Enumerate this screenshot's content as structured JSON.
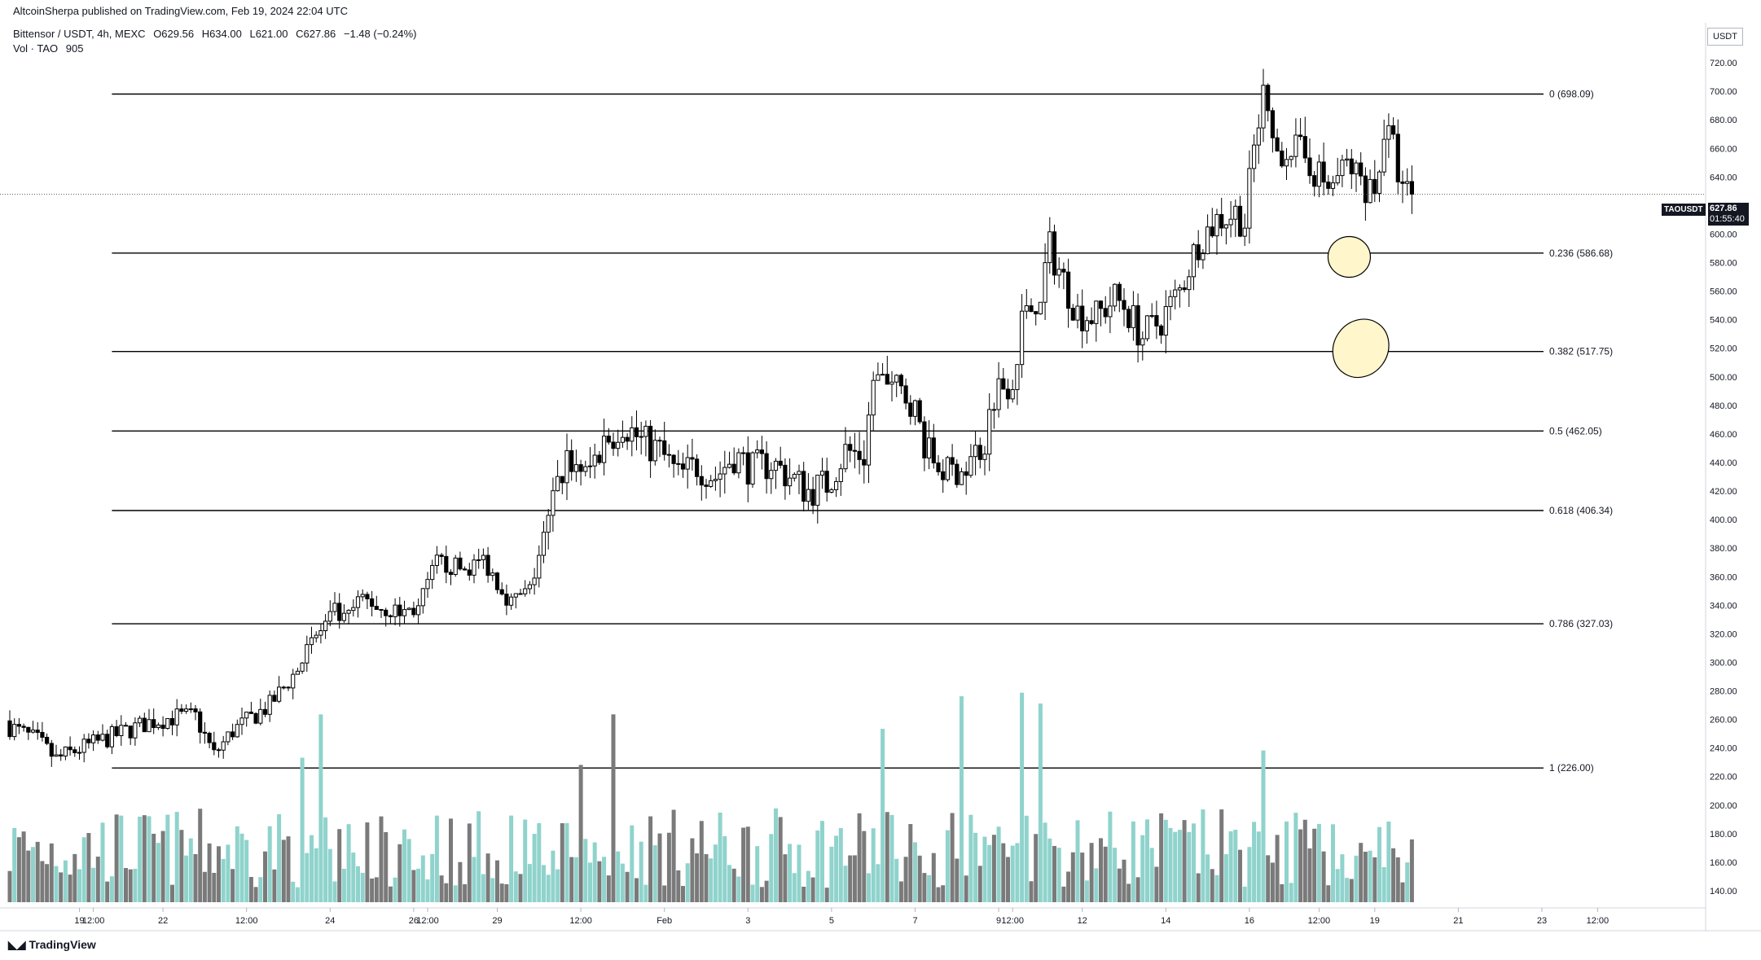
{
  "header": {
    "published": "AltcoinSherpa published on TradingView.com, Feb 19, 2024 22:04 UTC",
    "symbol": "Bittensor / USDT, 4h, MEXC",
    "ohlc": {
      "open": "O629.56",
      "high": "H634.00",
      "low": "L621.00",
      "close": "C627.86",
      "change": "−1.48 (−0.24%)"
    },
    "volume_label": "Vol · TAO",
    "volume_value": "905"
  },
  "price_axis": {
    "currency": "USDT",
    "symbol_tag": "TAOUSDT",
    "last_price": "627.86",
    "countdown": "01:55:40",
    "colors": {
      "up": "#ffffff",
      "down": "#000000",
      "vol_up": "#8fd3cc",
      "vol_down": "#7a7a7a",
      "line": "#000000"
    }
  },
  "branding": {
    "logo": "TradingView"
  },
  "chart_data": {
    "type": "candlestick",
    "title": "",
    "ylim": [
      128,
      748
    ],
    "y_ticks": [
      140,
      160,
      180,
      200,
      220,
      240,
      260,
      280,
      300,
      320,
      340,
      360,
      380,
      400,
      420,
      440,
      460,
      480,
      500,
      520,
      540,
      560,
      580,
      600,
      620,
      640,
      660,
      680,
      700,
      720,
      740
    ],
    "x_ticks": [
      {
        "label": "19",
        "bar": 15
      },
      {
        "label": "12:00",
        "bar": 18
      },
      {
        "label": "22",
        "bar": 33
      },
      {
        "label": "12:00",
        "bar": 51
      },
      {
        "label": "24",
        "bar": 69
      },
      {
        "label": "26",
        "bar": 87
      },
      {
        "label": "12:00",
        "bar": 90
      },
      {
        "label": "29",
        "bar": 105
      },
      {
        "label": "12:00",
        "bar": 123
      },
      {
        "label": "Feb",
        "bar": 141
      },
      {
        "label": "3",
        "bar": 159
      },
      {
        "label": "5",
        "bar": 177
      },
      {
        "label": "7",
        "bar": 195
      },
      {
        "label": "9",
        "bar": 213
      },
      {
        "label": "12:00",
        "bar": 216
      },
      {
        "label": "12",
        "bar": 231
      },
      {
        "label": "14",
        "bar": 249
      },
      {
        "label": "16",
        "bar": 267
      },
      {
        "label": "12:00",
        "bar": 282
      },
      {
        "label": "19",
        "bar": 294
      },
      {
        "label": "21",
        "bar": 312
      },
      {
        "label": "23",
        "bar": 330
      },
      {
        "label": "12:00",
        "bar": 342
      }
    ],
    "fib_levels": [
      {
        "label": "0 (698.09)",
        "value": 698.09
      },
      {
        "label": "0.236 (586.68)",
        "value": 586.68
      },
      {
        "label": "0.382 (517.75)",
        "value": 517.75
      },
      {
        "label": "0.5 (462.05)",
        "value": 462.05
      },
      {
        "label": "0.618 (406.34)",
        "value": 406.34
      },
      {
        "label": "0.786 (327.03)",
        "value": 327.03
      },
      {
        "label": "1 (226.00)",
        "value": 226.0
      }
    ],
    "fib_start_bar": 22,
    "highlight_zones": [
      {
        "bar": 288.5,
        "price": 584,
        "color": "#fff6cc"
      },
      {
        "bar": 291,
        "price": 520,
        "color": "#fff6cc"
      }
    ],
    "anchors": [
      [
        0,
        255
      ],
      [
        6,
        245
      ],
      [
        10,
        232
      ],
      [
        14,
        238
      ],
      [
        22,
        248
      ],
      [
        30,
        258
      ],
      [
        36,
        262
      ],
      [
        40,
        262
      ],
      [
        44,
        235
      ],
      [
        48,
        252
      ],
      [
        56,
        270
      ],
      [
        62,
        295
      ],
      [
        66,
        318
      ],
      [
        70,
        335
      ],
      [
        72,
        328
      ],
      [
        76,
        345
      ],
      [
        80,
        338
      ],
      [
        84,
        335
      ],
      [
        88,
        338
      ],
      [
        92,
        370
      ],
      [
        98,
        365
      ],
      [
        102,
        372
      ],
      [
        108,
        342
      ],
      [
        112,
        350
      ],
      [
        116,
        400
      ],
      [
        120,
        445
      ],
      [
        124,
        430
      ],
      [
        128,
        455
      ],
      [
        132,
        468
      ],
      [
        136,
        455
      ],
      [
        140,
        448
      ],
      [
        144,
        430
      ],
      [
        148,
        438
      ],
      [
        152,
        430
      ],
      [
        156,
        445
      ],
      [
        160,
        435
      ],
      [
        164,
        440
      ],
      [
        168,
        430
      ],
      [
        172,
        420
      ],
      [
        176,
        425
      ],
      [
        180,
        448
      ],
      [
        184,
        445
      ],
      [
        186,
        498
      ],
      [
        190,
        492
      ],
      [
        194,
        485
      ],
      [
        198,
        445
      ],
      [
        202,
        432
      ],
      [
        206,
        440
      ],
      [
        210,
        455
      ],
      [
        212,
        490
      ],
      [
        216,
        500
      ],
      [
        218,
        538
      ],
      [
        222,
        560
      ],
      [
        224,
        590
      ],
      [
        226,
        575
      ],
      [
        230,
        545
      ],
      [
        234,
        542
      ],
      [
        238,
        555
      ],
      [
        240,
        550
      ],
      [
        244,
        528
      ],
      [
        248,
        540
      ],
      [
        252,
        560
      ],
      [
        256,
        595
      ],
      [
        260,
        610
      ],
      [
        264,
        615
      ],
      [
        266,
        608
      ],
      [
        268,
        660
      ],
      [
        270,
        698
      ],
      [
        272,
        656
      ],
      [
        276,
        662
      ],
      [
        280,
        650
      ],
      [
        284,
        632
      ],
      [
        288,
        648
      ],
      [
        292,
        635
      ],
      [
        294,
        630
      ],
      [
        296,
        672
      ],
      [
        298,
        660
      ],
      [
        300,
        628
      ],
      [
        302,
        627.86
      ]
    ],
    "last_close": 627.86,
    "volume_ylim": [
      0,
      400
    ],
    "volume_highlights": [
      [
        63,
        200
      ],
      [
        67,
        260
      ],
      [
        123,
        190
      ],
      [
        130,
        260
      ],
      [
        188,
        240
      ],
      [
        205,
        285
      ],
      [
        218,
        290
      ],
      [
        222,
        275
      ],
      [
        270,
        210
      ]
    ]
  }
}
